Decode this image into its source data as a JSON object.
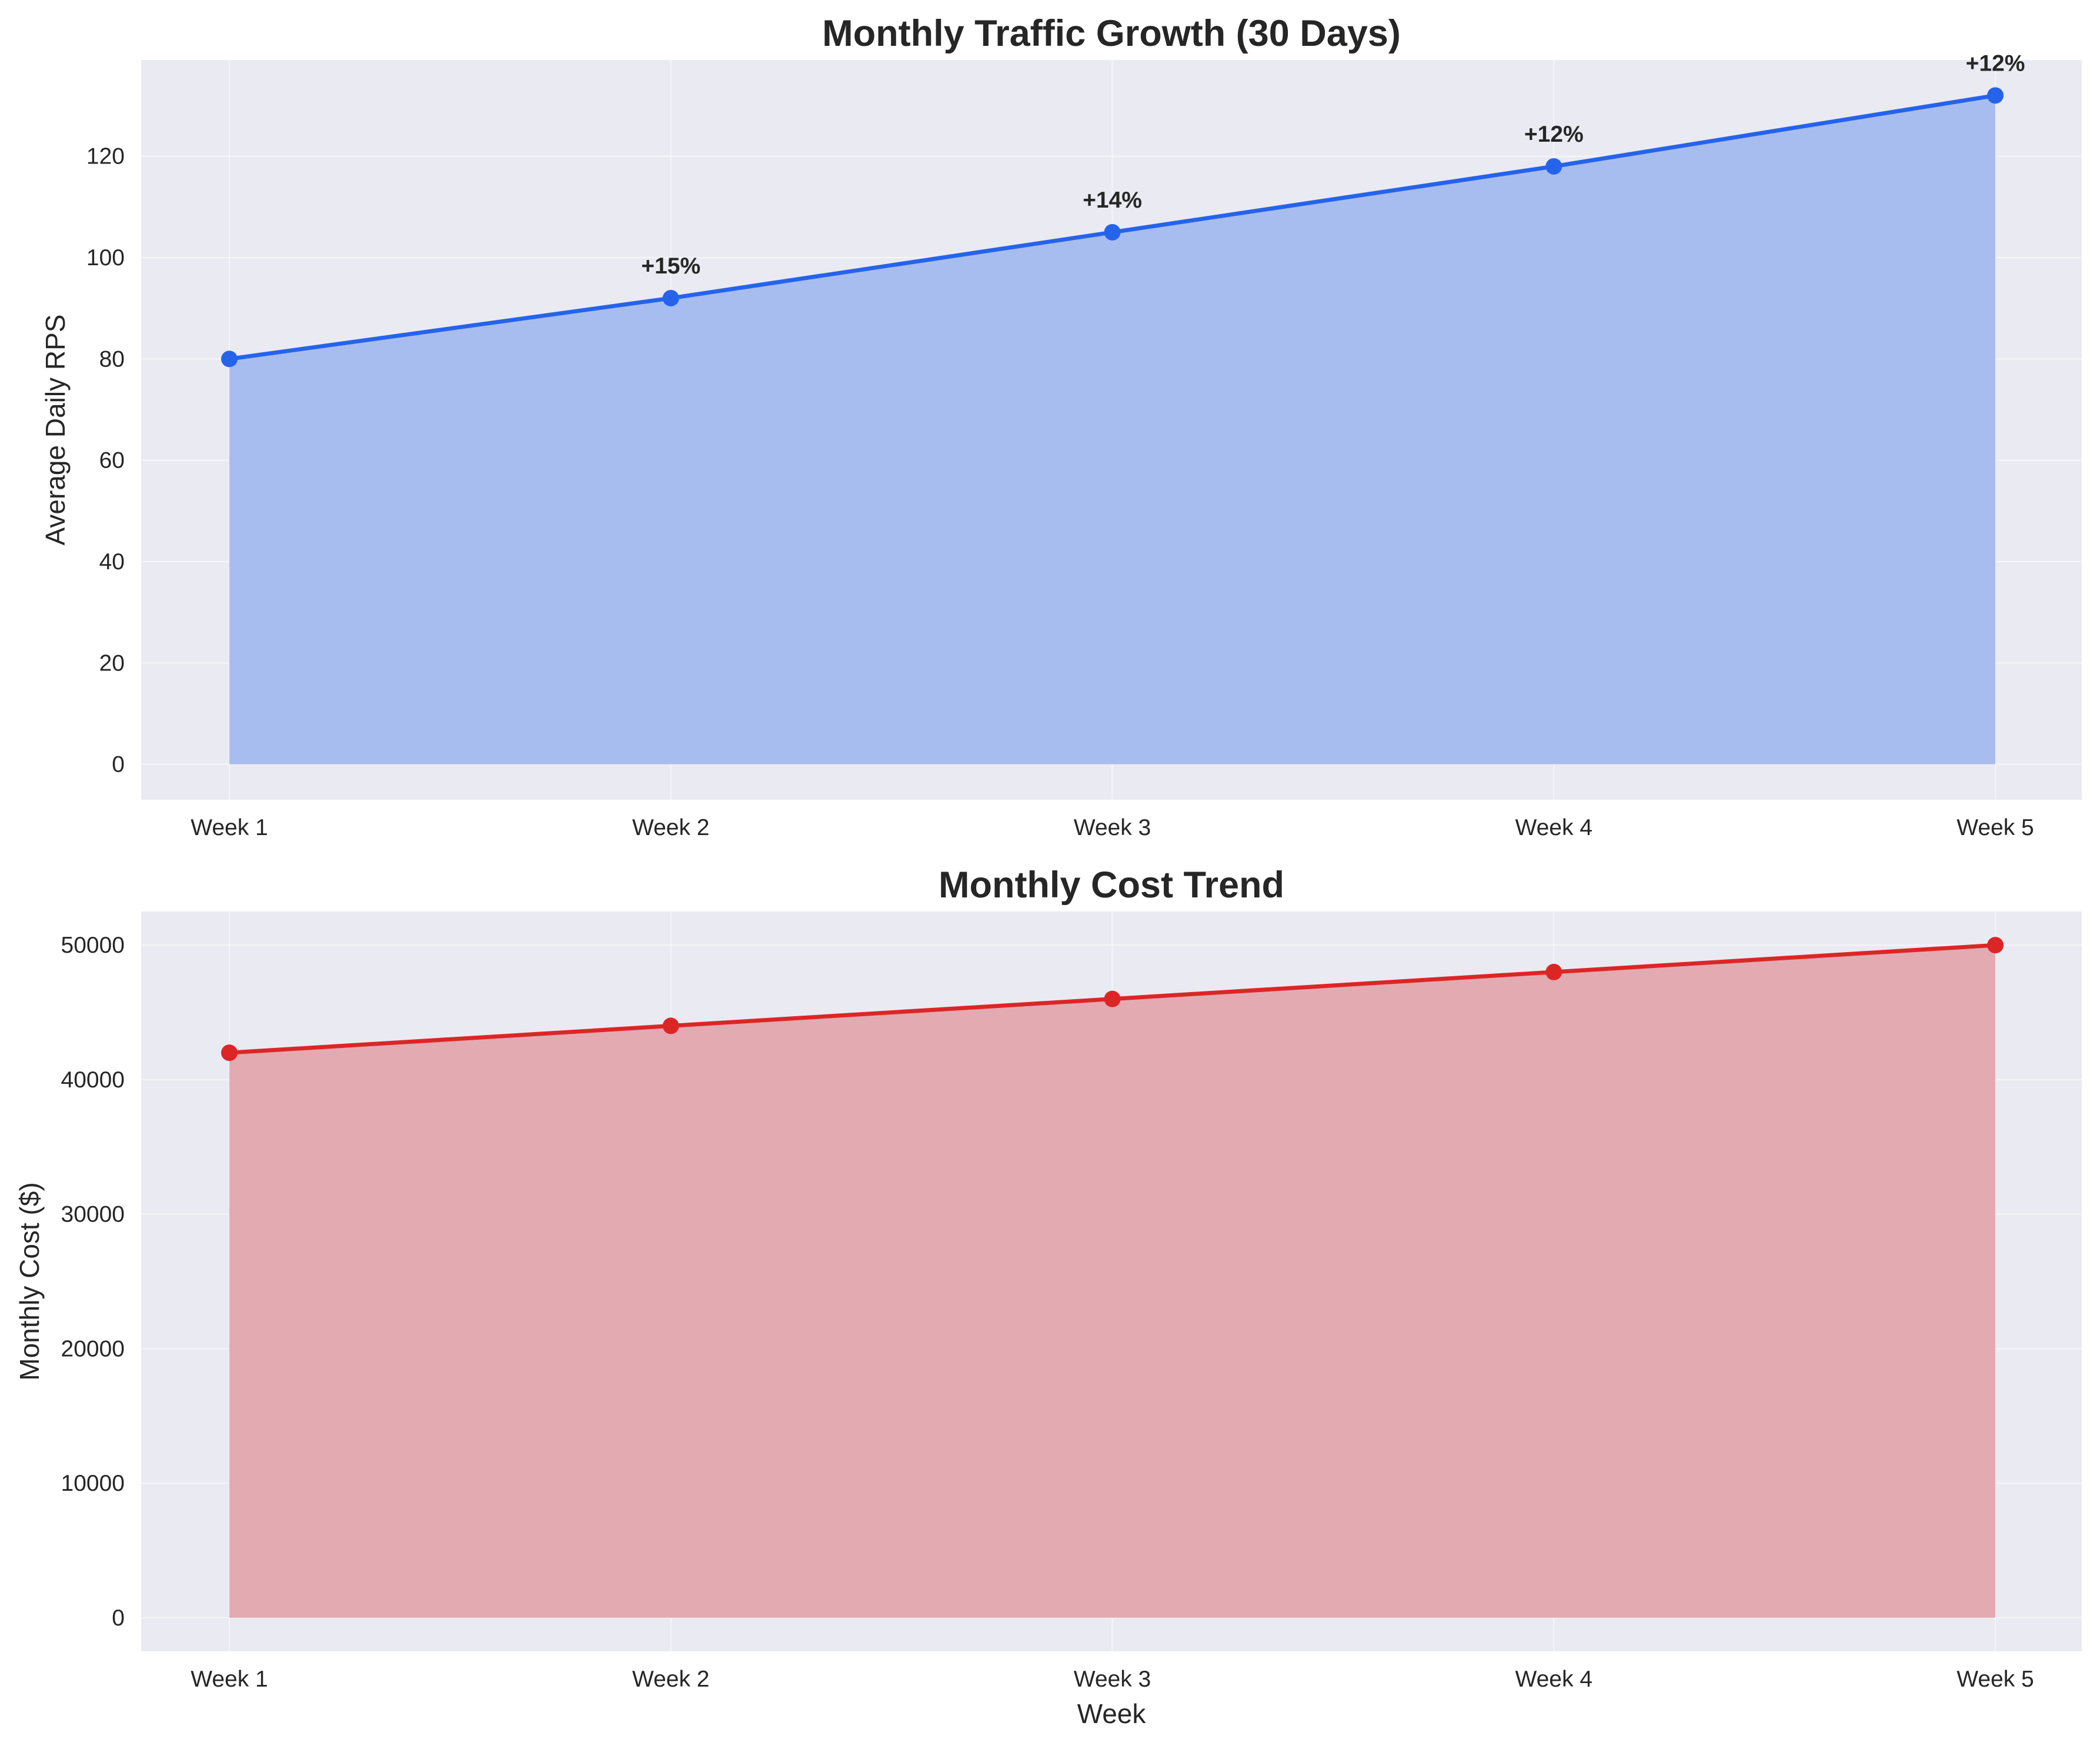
{
  "chart_data": [
    {
      "type": "area",
      "title": "Monthly Traffic Growth (30 Days)",
      "xlabel": "",
      "ylabel": "Average Daily RPS",
      "categories": [
        "Week 1",
        "Week 2",
        "Week 3",
        "Week 4",
        "Week 5"
      ],
      "values": [
        80,
        92,
        105,
        118,
        132
      ],
      "annotations": [
        "",
        "+15%",
        "+14%",
        "+12%",
        "+12%"
      ],
      "ylim": [
        -7,
        139
      ],
      "yticks": [
        "0",
        "20",
        "40",
        "60",
        "80",
        "100",
        "120"
      ],
      "grid": true,
      "markers": true,
      "color": "#2563eb",
      "fill_color": "#a8bdef"
    },
    {
      "type": "area",
      "title": "Monthly Cost Trend",
      "xlabel": "Week",
      "ylabel": "Monthly Cost ($)",
      "categories": [
        "Week 1",
        "Week 2",
        "Week 3",
        "Week 4",
        "Week 5"
      ],
      "values": [
        42000,
        44000,
        46000,
        48000,
        50000
      ],
      "ylim": [
        -2500,
        52500
      ],
      "yticks": [
        "0",
        "10000",
        "20000",
        "30000",
        "40000",
        "50000"
      ],
      "grid": true,
      "markers": true,
      "color": "#dc2626",
      "fill_color": "#e3aab2"
    }
  ]
}
